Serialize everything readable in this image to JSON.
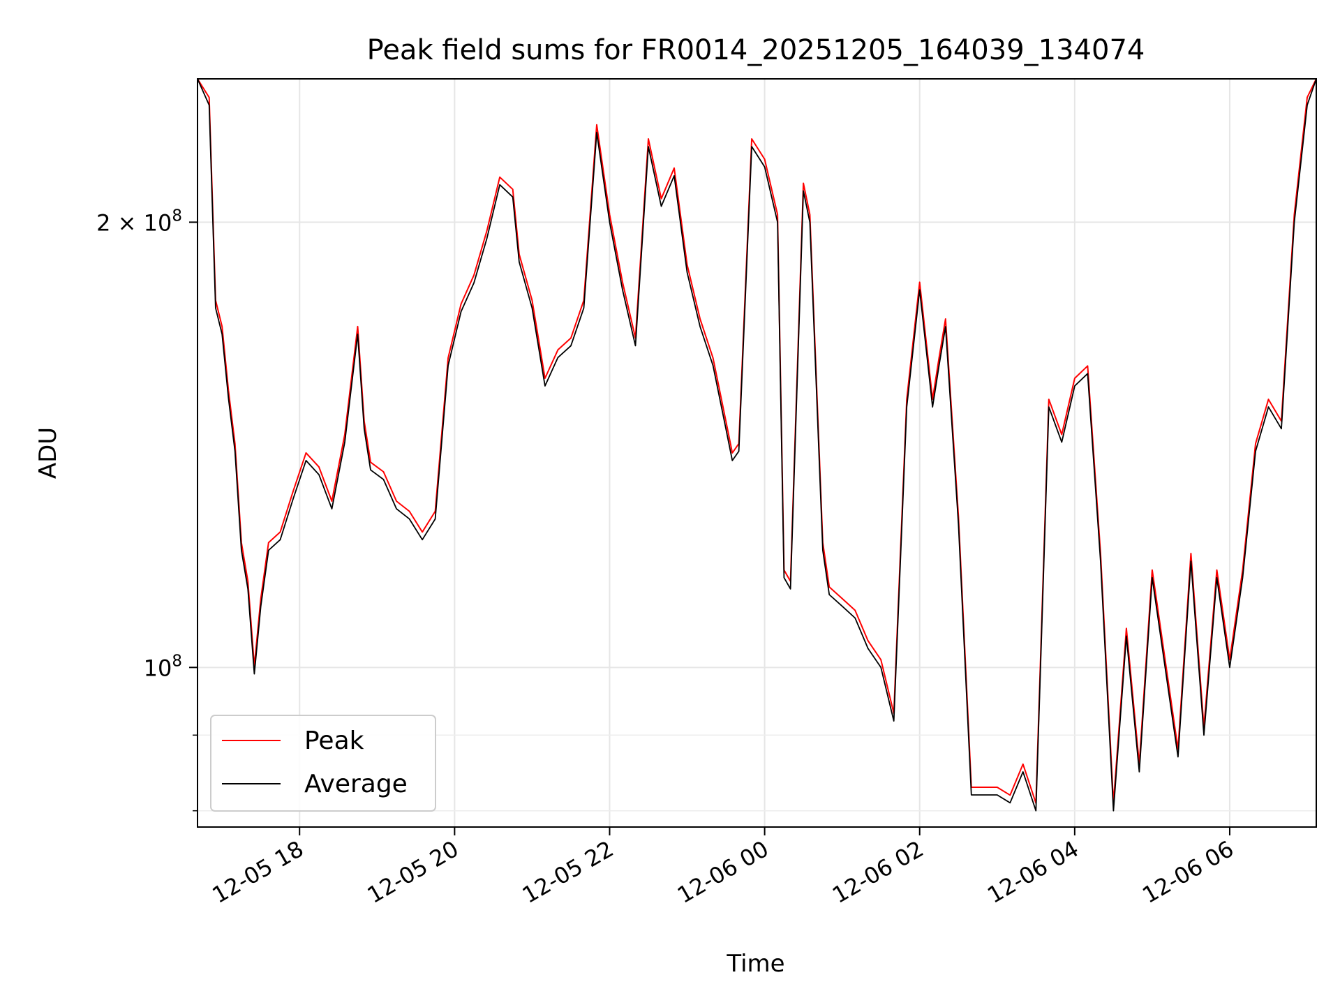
{
  "chart_data": {
    "type": "line",
    "title": "Peak field sums for FR0014_20251205_164039_134074",
    "xlabel": "Time",
    "ylabel": "ADU",
    "yscale": "log",
    "xlim": [
      "2025-12-05 16:41",
      "2025-12-06 07:07"
    ],
    "ylim": [
      78000000,
      250000000
    ],
    "grid": true,
    "legend_position": "lower-left",
    "x_ticks": [
      {
        "value": "2025-12-05 18:00",
        "label": "12-05 18"
      },
      {
        "value": "2025-12-05 20:00",
        "label": "12-05 20"
      },
      {
        "value": "2025-12-05 22:00",
        "label": "12-05 22"
      },
      {
        "value": "2025-12-06 00:00",
        "label": "12-06 00"
      },
      {
        "value": "2025-12-06 02:00",
        "label": "12-06 02"
      },
      {
        "value": "2025-12-06 04:00",
        "label": "12-06 04"
      },
      {
        "value": "2025-12-06 06:00",
        "label": "12-06 06"
      }
    ],
    "y_major_ticks": [
      {
        "value": 100000000,
        "base": "10",
        "exp": "8"
      },
      {
        "value": 200000000,
        "mant": "2 × ",
        "base": "10",
        "exp": "8"
      }
    ],
    "y_minor_ticks": [
      80000000,
      90000000
    ],
    "series": [
      {
        "name": "Peak",
        "color": "#ff0000"
      },
      {
        "name": "Average",
        "color": "#000000"
      }
    ],
    "x": [
      "2025-12-05 16:41",
      "2025-12-05 16:50",
      "2025-12-05 16:55",
      "2025-12-05 17:00",
      "2025-12-05 17:05",
      "2025-12-05 17:10",
      "2025-12-05 17:15",
      "2025-12-05 17:20",
      "2025-12-05 17:25",
      "2025-12-05 17:30",
      "2025-12-05 17:36",
      "2025-12-05 17:45",
      "2025-12-05 17:55",
      "2025-12-05 18:05",
      "2025-12-05 18:15",
      "2025-12-05 18:25",
      "2025-12-05 18:35",
      "2025-12-05 18:45",
      "2025-12-05 18:50",
      "2025-12-05 18:55",
      "2025-12-05 19:05",
      "2025-12-05 19:15",
      "2025-12-05 19:25",
      "2025-12-05 19:35",
      "2025-12-05 19:45",
      "2025-12-05 19:55",
      "2025-12-05 20:05",
      "2025-12-05 20:15",
      "2025-12-05 20:25",
      "2025-12-05 20:35",
      "2025-12-05 20:45",
      "2025-12-05 20:50",
      "2025-12-05 21:00",
      "2025-12-05 21:10",
      "2025-12-05 21:20",
      "2025-12-05 21:30",
      "2025-12-05 21:40",
      "2025-12-05 21:50",
      "2025-12-05 22:00",
      "2025-12-05 22:10",
      "2025-12-05 22:20",
      "2025-12-05 22:30",
      "2025-12-05 22:40",
      "2025-12-05 22:50",
      "2025-12-05 23:00",
      "2025-12-05 23:10",
      "2025-12-05 23:20",
      "2025-12-05 23:30",
      "2025-12-05 23:35",
      "2025-12-05 23:40",
      "2025-12-05 23:50",
      "2025-12-06 00:00",
      "2025-12-06 00:10",
      "2025-12-06 00:15",
      "2025-12-06 00:20",
      "2025-12-06 00:30",
      "2025-12-06 00:35",
      "2025-12-06 00:45",
      "2025-12-06 00:50",
      "2025-12-06 01:00",
      "2025-12-06 01:10",
      "2025-12-06 01:20",
      "2025-12-06 01:30",
      "2025-12-06 01:40",
      "2025-12-06 01:50",
      "2025-12-06 02:00",
      "2025-12-06 02:10",
      "2025-12-06 02:15",
      "2025-12-06 02:20",
      "2025-12-06 02:30",
      "2025-12-06 02:40",
      "2025-12-06 02:50",
      "2025-12-06 03:00",
      "2025-12-06 03:10",
      "2025-12-06 03:20",
      "2025-12-06 03:30",
      "2025-12-06 03:40",
      "2025-12-06 03:50",
      "2025-12-06 04:00",
      "2025-12-06 04:10",
      "2025-12-06 04:20",
      "2025-12-06 04:30",
      "2025-12-06 04:40",
      "2025-12-06 04:50",
      "2025-12-06 05:00",
      "2025-12-06 05:10",
      "2025-12-06 05:20",
      "2025-12-06 05:30",
      "2025-12-06 05:40",
      "2025-12-06 05:50",
      "2025-12-06 06:00",
      "2025-12-06 06:10",
      "2025-12-06 06:20",
      "2025-12-06 06:30",
      "2025-12-06 06:40",
      "2025-12-06 06:50",
      "2025-12-06 07:00",
      "2025-12-06 07:07"
    ],
    "values": [
      250000000,
      240000000,
      175000000,
      168000000,
      152000000,
      140000000,
      120000000,
      113000000,
      99000000,
      110000000,
      120000000,
      122000000,
      130000000,
      138000000,
      135000000,
      128000000,
      142000000,
      168000000,
      145000000,
      136000000,
      134000000,
      128000000,
      126000000,
      122000000,
      126000000,
      160000000,
      174000000,
      182000000,
      195000000,
      212000000,
      208000000,
      188000000,
      175000000,
      155000000,
      162000000,
      165000000,
      175000000,
      230000000,
      200000000,
      180000000,
      165000000,
      225000000,
      205000000,
      215000000,
      185000000,
      170000000,
      160000000,
      145000000,
      138000000,
      140000000,
      225000000,
      218000000,
      200000000,
      115000000,
      113000000,
      210000000,
      200000000,
      120000000,
      112000000,
      110000000,
      108000000,
      103000000,
      100000000,
      92000000,
      150000000,
      180000000,
      150000000,
      160000000,
      170000000,
      125000000,
      82000000,
      82000000,
      82000000,
      81000000,
      85000000,
      80000000,
      150000000,
      142000000,
      155000000,
      158000000,
      118000000,
      80000000,
      105000000,
      85000000,
      115000000,
      100000000,
      87000000,
      118000000,
      90000000,
      115000000,
      100000000,
      115000000,
      140000000,
      150000000,
      145000000,
      200000000,
      240000000,
      252000000
    ]
  }
}
